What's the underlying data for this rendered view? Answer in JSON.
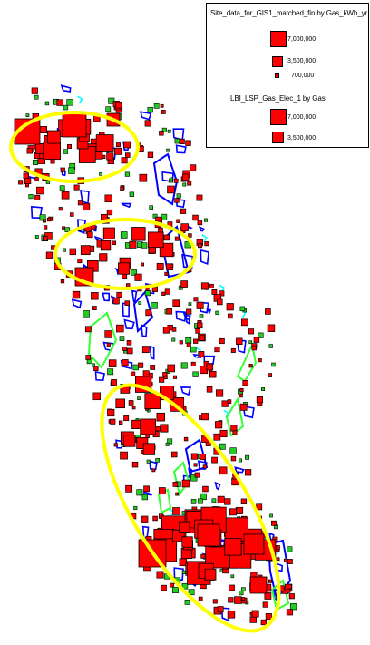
{
  "colors": {
    "site_square": "#ff0000",
    "square_outline": "#000000",
    "lbi_square": "#ff0000",
    "green_site": "#22cc22",
    "blue_boundary": "#0000ff",
    "cyan_boundary": "#00ffff",
    "lime_boundary": "#33ff33",
    "highlight_ellipse": "#ffff00"
  },
  "legend": {
    "layer1": {
      "title": "Site_data_for_GIS1_matched_fin by Gas_kWh_yr",
      "classes": [
        {
          "label": "7,000,000",
          "value": 7000000
        },
        {
          "label": "3,500,000",
          "value": 3500000
        },
        {
          "label": "700,000",
          "value": 700000
        }
      ]
    },
    "layer2": {
      "title": "LBI_LSP_Gas_Elec_1 by Gas",
      "classes": [
        {
          "label": "7,000,000",
          "value": 7000000
        },
        {
          "label": "3,500,000",
          "value": 3500000
        }
      ]
    }
  },
  "highlight_zones": [
    {
      "name": "north-west cluster"
    },
    {
      "name": "central cluster"
    },
    {
      "name": "south-east cluster"
    }
  ]
}
